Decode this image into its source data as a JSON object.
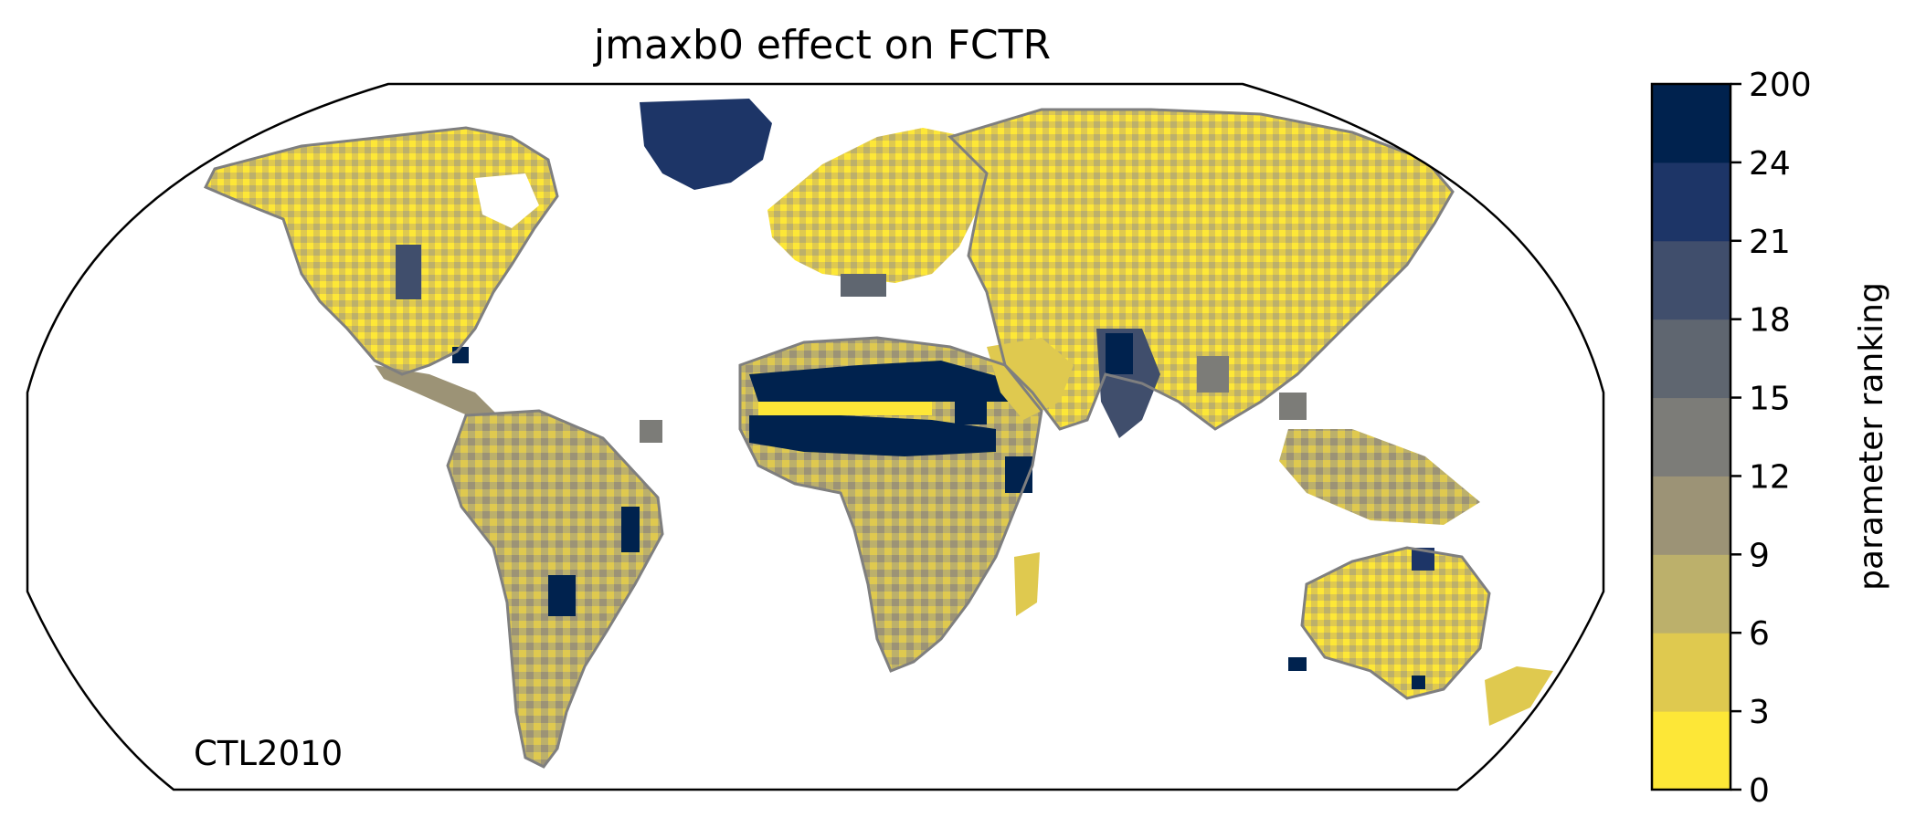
{
  "title": "jmaxb0 effect on FCTR",
  "run_label": "CTL2010",
  "colorbar": {
    "label": "parameter ranking",
    "ticks": [
      "0",
      "3",
      "6",
      "9",
      "12",
      "15",
      "18",
      "21",
      "24",
      "200"
    ],
    "colors": [
      "#fde737",
      "#dfc94f",
      "#bcb06b",
      "#9c9376",
      "#7c7c78",
      "#5f6670",
      "#404e6c",
      "#1d3567",
      "#00224e"
    ]
  },
  "map": {
    "projection": "Robinson",
    "ocean_color": "#ffffff",
    "coastline_color": "#7f7f7f"
  }
}
